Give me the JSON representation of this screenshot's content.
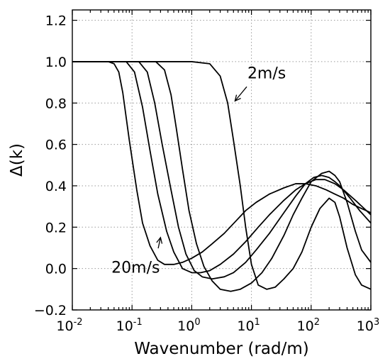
{
  "chart_data": {
    "type": "line",
    "title": "",
    "xlabel": "Wavenumber (rad/m)",
    "ylabel": "Δ(k)",
    "xscale": "log",
    "xlim": [
      0.01,
      1000
    ],
    "ylim": [
      -0.2,
      1.25
    ],
    "grid": true,
    "legend": "none",
    "x_ticks": [
      {
        "value": 0.01,
        "base": "10",
        "exp": "-2"
      },
      {
        "value": 0.1,
        "base": "10",
        "exp": "-1"
      },
      {
        "value": 1,
        "base": "10",
        "exp": "0"
      },
      {
        "value": 10,
        "base": "10",
        "exp": "1"
      },
      {
        "value": 100,
        "base": "10",
        "exp": "2"
      },
      {
        "value": 1000,
        "base": "10",
        "exp": "3"
      }
    ],
    "y_ticks": [
      {
        "value": -0.2,
        "label": "−0.2"
      },
      {
        "value": 0.0,
        "label": "0.0"
      },
      {
        "value": 0.2,
        "label": "0.2"
      },
      {
        "value": 0.4,
        "label": "0.4"
      },
      {
        "value": 0.6,
        "label": "0.6"
      },
      {
        "value": 0.8,
        "label": "0.8"
      },
      {
        "value": 1.0,
        "label": "1.0"
      },
      {
        "value": 1.2,
        "label": "1.2"
      }
    ],
    "series": [
      {
        "x": [
          0.01,
          1.0,
          2.0,
          3.0,
          4.0,
          5.0,
          6.5,
          8.0,
          10.0,
          13.0,
          18.0,
          25.0,
          35.0,
          50.0,
          70.0,
          100.0,
          140.0,
          200.0,
          250.0,
          300.0,
          400.0,
          550.0,
          700.0,
          1000.0
        ],
        "y": [
          1.0,
          1.0,
          0.99,
          0.93,
          0.8,
          0.62,
          0.4,
          0.2,
          0.02,
          -0.08,
          -0.1,
          -0.09,
          -0.05,
          0.0,
          0.08,
          0.2,
          0.29,
          0.34,
          0.32,
          0.25,
          0.1,
          -0.03,
          -0.08,
          -0.1
        ]
      },
      {
        "x": [
          0.01,
          0.25,
          0.35,
          0.45,
          0.55,
          0.7,
          0.9,
          1.2,
          1.6,
          2.2,
          3.0,
          4.5,
          6.5,
          10.0,
          15.0,
          22.0,
          35.0,
          50.0,
          70.0,
          100.0,
          150.0,
          200.0,
          250.0,
          300.0,
          400.0,
          550.0,
          700.0,
          1000.0
        ],
        "y": [
          1.0,
          1.0,
          0.96,
          0.84,
          0.68,
          0.48,
          0.28,
          0.12,
          0.01,
          -0.06,
          -0.1,
          -0.11,
          -0.1,
          -0.07,
          -0.02,
          0.05,
          0.16,
          0.26,
          0.34,
          0.42,
          0.46,
          0.47,
          0.45,
          0.42,
          0.32,
          0.18,
          0.09,
          0.03
        ]
      },
      {
        "x": [
          0.01,
          0.13,
          0.18,
          0.24,
          0.32,
          0.45,
          0.6,
          0.8,
          1.1,
          1.5,
          2.2,
          3.5,
          5.0,
          8.0,
          12.0,
          20.0,
          35.0,
          55.0,
          80.0,
          110.0,
          150.0,
          200.0,
          250.0,
          300.0,
          450.0,
          650.0,
          1000.0
        ],
        "y": [
          1.0,
          1.0,
          0.95,
          0.8,
          0.6,
          0.38,
          0.2,
          0.07,
          -0.01,
          -0.04,
          -0.05,
          -0.04,
          -0.02,
          0.03,
          0.09,
          0.17,
          0.27,
          0.35,
          0.41,
          0.44,
          0.45,
          0.44,
          0.42,
          0.4,
          0.34,
          0.28,
          0.22
        ]
      },
      {
        "x": [
          0.01,
          0.08,
          0.11,
          0.15,
          0.2,
          0.27,
          0.38,
          0.5,
          0.7,
          1.0,
          1.4,
          2.0,
          3.0,
          5.0,
          8.0,
          13.0,
          20.0,
          35.0,
          55.0,
          80.0,
          120.0,
          170.0,
          250.0,
          350.0,
          550.0,
          1000.0
        ],
        "y": [
          1.0,
          1.0,
          0.95,
          0.78,
          0.57,
          0.36,
          0.18,
          0.08,
          0.0,
          -0.02,
          -0.02,
          -0.01,
          0.02,
          0.07,
          0.13,
          0.2,
          0.26,
          0.33,
          0.38,
          0.41,
          0.43,
          0.43,
          0.41,
          0.38,
          0.33,
          0.26
        ]
      },
      {
        "x": [
          0.01,
          0.04,
          0.05,
          0.06,
          0.07,
          0.09,
          0.12,
          0.15,
          0.2,
          0.27,
          0.35,
          0.5,
          0.7,
          1.0,
          1.5,
          2.2,
          3.5,
          5.5,
          8.0,
          12.0,
          20.0,
          35.0,
          55.0,
          80.0,
          120.0,
          180.0,
          250.0,
          350.0,
          500.0,
          700.0,
          1000.0
        ],
        "y": [
          1.0,
          1.0,
          0.99,
          0.95,
          0.85,
          0.62,
          0.38,
          0.22,
          0.11,
          0.04,
          0.02,
          0.02,
          0.03,
          0.05,
          0.08,
          0.12,
          0.17,
          0.23,
          0.28,
          0.32,
          0.36,
          0.39,
          0.41,
          0.41,
          0.4,
          0.38,
          0.36,
          0.34,
          0.31,
          0.29,
          0.27
        ]
      }
    ],
    "annotations": [
      {
        "text": "2m/s",
        "x": 18,
        "y": 0.92,
        "arrow_to_x": 5.3,
        "arrow_to_y": 0.81
      },
      {
        "text": "20m/s",
        "x": 0.115,
        "y": -0.02,
        "arrow_to_x": 0.3,
        "arrow_to_y": 0.15
      }
    ]
  }
}
